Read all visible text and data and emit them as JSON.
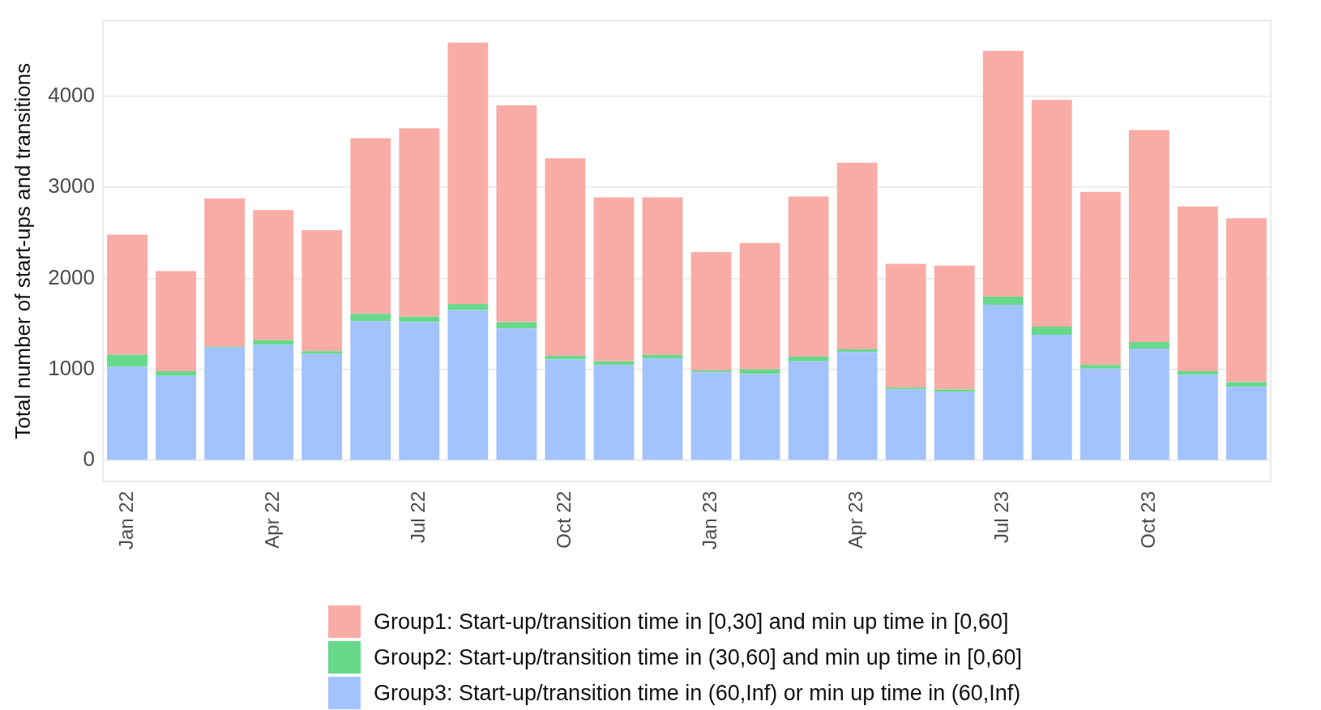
{
  "chart_data": {
    "type": "bar",
    "stacked": true,
    "ylabel": "Total number of start-ups and transitions",
    "categories": [
      "Jan 22",
      null,
      null,
      "Apr 22",
      null,
      null,
      "Jul 22",
      null,
      null,
      "Oct 22",
      null,
      null,
      "Jan 23",
      null,
      null,
      "Apr 23",
      null,
      null,
      "Jul 23",
      null,
      null,
      "Oct 23",
      null,
      null
    ],
    "series": [
      {
        "name": "Group3: Start-up/transition time in (60,Inf) or min up time in (60,Inf)",
        "color": "#a2c3fd",
        "values": [
          1030,
          930,
          1240,
          1270,
          1170,
          1530,
          1520,
          1650,
          1450,
          1110,
          1050,
          1120,
          970,
          950,
          1090,
          1190,
          780,
          750,
          1710,
          1380,
          1010,
          1230,
          940,
          810
        ]
      },
      {
        "name": "Group2: Start-up/transition time in (30,60] and min up time in [0,60]",
        "color": "#66d98a",
        "values": [
          130,
          50,
          10,
          50,
          30,
          80,
          60,
          70,
          70,
          40,
          40,
          40,
          20,
          50,
          50,
          30,
          20,
          30,
          90,
          90,
          40,
          70,
          40,
          50
        ]
      },
      {
        "name": "Group1: Start-up/transition time in [0,30] and min up time in [0,60]",
        "color": "#f9aca6",
        "values": [
          1320,
          1100,
          1630,
          1430,
          1330,
          1930,
          2070,
          2870,
          2380,
          2170,
          1800,
          1730,
          1300,
          1390,
          1760,
          2050,
          1360,
          1360,
          2700,
          2490,
          1900,
          2330,
          1810,
          1800
        ]
      }
    ],
    "ylim": [
      -230,
      4830
    ],
    "yticks": [
      0,
      1000,
      2000,
      3000,
      4000
    ],
    "grid": "y",
    "legend": "bottom"
  }
}
